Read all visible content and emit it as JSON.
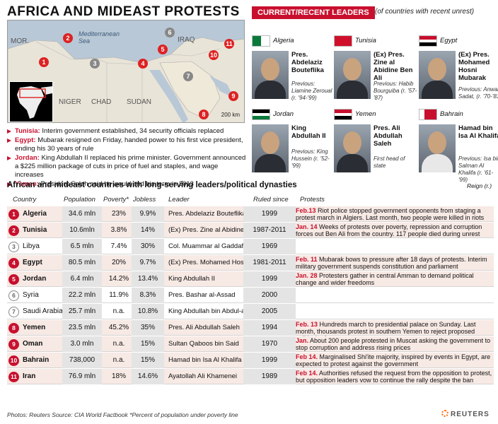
{
  "title": "AFRICA AND MIDEAST PROTESTS",
  "leaders_banner": "CURRENT/RECENT LEADERS",
  "leaders_note": "(of countries with recent unrest)",
  "map": {
    "labels": {
      "mor": "MOR.",
      "sea": "Mediterranean Sea",
      "iraq": "IRAQ",
      "niger": "NIGER",
      "chad": "CHAD",
      "sudan": "SUDAN"
    },
    "scale": "200 km",
    "markers": [
      "1",
      "2",
      "3",
      "4",
      "5",
      "6",
      "7",
      "8",
      "9",
      "10",
      "11"
    ]
  },
  "bullets": [
    {
      "country": "Tunisia:",
      "text": "Interim government established, 34 security officials replaced"
    },
    {
      "country": "Egypt:",
      "text": "Mubarak resigned on Friday, handed power to his first vice president, ending his 30 years of rule"
    },
    {
      "country": "Jordan:",
      "text": "King Abdullah II replaced his prime minister. Government announced a $225 million package of cuts in price of fuel and staples, and wage increases"
    },
    {
      "country": "Yemen:",
      "text": "President Saleh said he would end his term in 2013"
    }
  ],
  "leaders": [
    {
      "country": "Algeria",
      "name": "Pres. Abdelaziz Bouteflika",
      "prev": "Previous: Liamine Zeroual (r. '94-'99)"
    },
    {
      "country": "Tunisia",
      "name": "(Ex) Pres. Zine al Abidine Ben Ali",
      "prev": "Previous: Habib Bourguiba (r. '57-'87)"
    },
    {
      "country": "Egypt",
      "name": "(Ex) Pres. Mohamed Hosni Mubarak",
      "prev": "Previous: Anwar Sadat, (r. '70-'81)"
    },
    {
      "country": "Jordan",
      "name": "King Abdullah II",
      "prev": "Previous: King Hussein (r. '52-'99)"
    },
    {
      "country": "Yemen",
      "name": "Pres. Ali Abdullah Saleh",
      "prev": "First head of state"
    },
    {
      "country": "Bahrain",
      "name": "Hamad bin Isa Al Khalifa",
      "prev": "Previous: Isa bin Salman Al Khalifa (r. '61-'99)"
    }
  ],
  "table": {
    "title": "African and mideast countries with long-serving leaders/political dynasties",
    "reign_note": "Reign (r.)",
    "headers": {
      "country": "Country",
      "population": "Population",
      "poverty": "Poverty*",
      "jobless": "Jobless",
      "leader": "Leader",
      "since": "Ruled since",
      "protests": "Protests"
    },
    "rows": [
      {
        "num": "1",
        "country": "Algeria",
        "population": "34.6 mln",
        "poverty": "23%",
        "jobless": "9.9%",
        "leader": "Pres. Abdelaziz Bouteflika",
        "since": "1999",
        "date": "Feb.13",
        "protest": " Riot police stopped government opponents from staging a protest march in Algiers. Last month, two people were killed in riots"
      },
      {
        "num": "2",
        "country": "Tunisia",
        "population": "10.6mln",
        "poverty": "3.8%",
        "jobless": "14%",
        "leader": "(Ex) Pres. Zine al Abidine Ben Ali",
        "since": "1987-2011",
        "date": "Jan. 14",
        "protest": " Weeks of protests over poverty, repression and corruption forces out Ben Ali from the country. 117 people died during unrest"
      },
      {
        "num": "3",
        "country": "Libya",
        "population": "6.5 mln",
        "poverty": "7.4%",
        "jobless": "30%",
        "leader": "Col. Muammar al Gaddafi",
        "since": "1969",
        "date": "",
        "protest": ""
      },
      {
        "num": "4",
        "country": "Egypt",
        "population": "80.5 mln",
        "poverty": "20%",
        "jobless": "9.7%",
        "leader": "(Ex) Pres. Mohamed Hosni Mubarak",
        "since": "1981-2011",
        "date": "Feb. 11",
        "protest": " Mubarak bows to pressure after 18 days of protests. Interim military government suspends constitution and parliament"
      },
      {
        "num": "5",
        "country": "Jordan",
        "population": "6.4 mln",
        "poverty": "14.2%",
        "jobless": "13.4%",
        "leader": "King Abdullah II",
        "since": "1999",
        "date": "Jan. 28",
        "protest": " Protesters gather in central Amman to demand political change and wider freedoms"
      },
      {
        "num": "6",
        "country": "Syria",
        "population": "22.2 mln",
        "poverty": "11.9%",
        "jobless": "8.3%",
        "leader": "Pres. Bashar al-Assad",
        "since": "2000",
        "date": "",
        "protest": ""
      },
      {
        "num": "7",
        "country": "Saudi Arabia",
        "population": "25.7 mln",
        "poverty": "n.a.",
        "jobless": "10.8%",
        "leader": "King Abdullah bin Abdul-aziz",
        "since": "2005",
        "date": "",
        "protest": ""
      },
      {
        "num": "8",
        "country": "Yemen",
        "population": "23.5 mln",
        "poverty": "45.2%",
        "jobless": "35%",
        "leader": "Pres. Ali Abdullah Saleh",
        "since": "1994",
        "date": "Feb. 13",
        "protest": " Hundreds march to presidential palace on Sunday. Last month, thousands protest in southern Yemen to reject proposed political reform"
      },
      {
        "num": "9",
        "country": "Oman",
        "population": "3.0 mln",
        "poverty": "n.a.",
        "jobless": "15%",
        "leader": "Sultan Qaboos bin Said",
        "since": "1970",
        "date": "Jan.",
        "protest": " About 200 people protested in Muscat asking the government to stop corruption and address rising prices"
      },
      {
        "num": "10",
        "country": "Bahrain",
        "population": "738,000",
        "poverty": "n.a.",
        "jobless": "15%",
        "leader": "Hamad bin Isa Al Khalifa",
        "since": "1999",
        "date": "Feb 14.",
        "protest": " Marginalised Shi'ite majority, inspired by events in Egypt, are expected to protest against the government"
      },
      {
        "num": "11",
        "country": "Iran",
        "population": "76.9 mln",
        "poverty": "18%",
        "jobless": "14.6%",
        "leader": "Ayatollah Ali Khamenei",
        "since": "1989",
        "date": "Feb 14.",
        "protest": " Authorities refused the request from the opposition to protest, but opposition leaders vow to continue the rally despite the ban"
      }
    ]
  },
  "footer": "Photos: Reuters   Source: CIA World Factbook     *Percent of population under poverty line",
  "brand": "REUTERS",
  "colors": {
    "accent": "#c8102e",
    "unrest_row": "#f7e9e4",
    "sea": "#b9c8d6",
    "land": "#e9e4d8"
  }
}
